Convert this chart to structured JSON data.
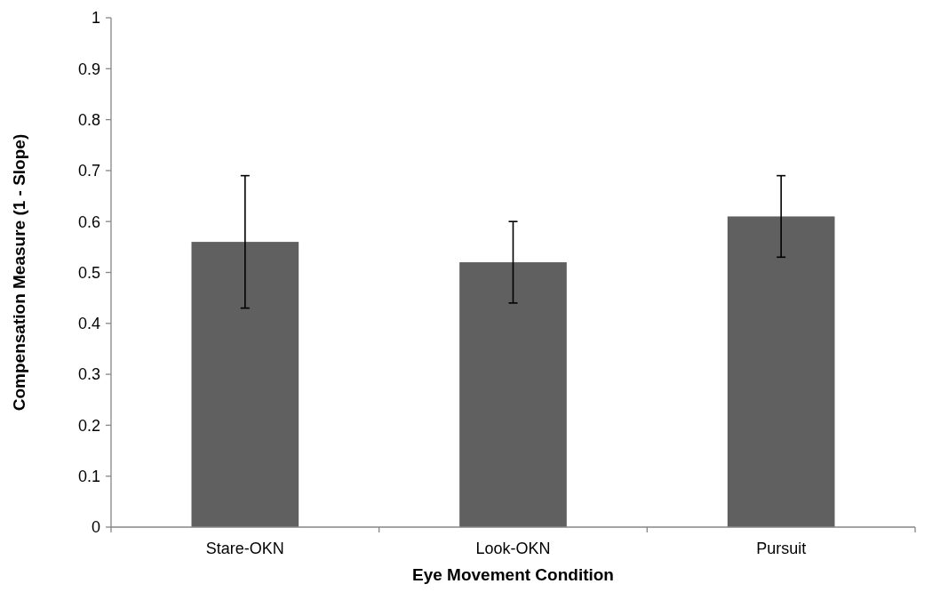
{
  "chart_data": {
    "type": "bar",
    "categories": [
      "Stare-OKN",
      "Look-OKN",
      "Pursuit"
    ],
    "values": [
      0.56,
      0.52,
      0.61
    ],
    "errors": [
      0.13,
      0.08,
      0.08
    ],
    "color": "#606060",
    "xlabel": "Eye Movement Condition",
    "ylabel": "Compensation Measure (1 - Slope)",
    "ylim": [
      0,
      1
    ],
    "yticks": [
      0,
      0.1,
      0.2,
      0.3,
      0.4,
      0.5,
      0.6,
      0.7,
      0.8,
      0.9,
      1
    ],
    "grid": false
  }
}
